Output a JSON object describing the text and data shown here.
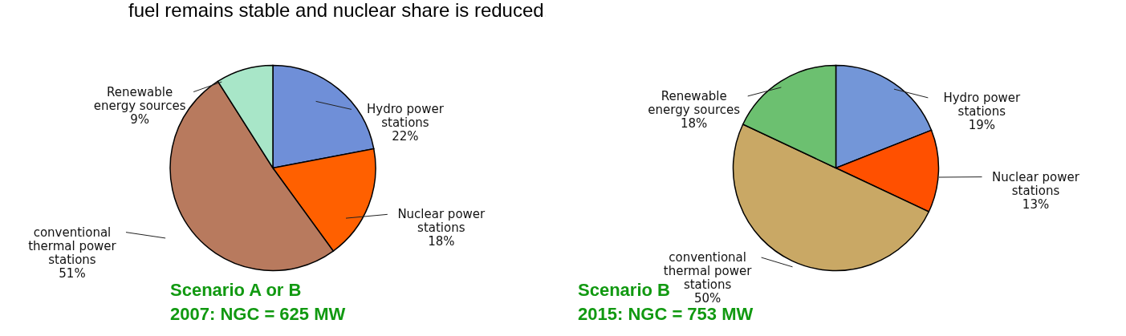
{
  "chart_data": [
    {
      "type": "pie",
      "title": "fuel remains stable and nuclear share is reduced.",
      "categories": [
        "Hydro power stations",
        "Nuclear power stations",
        "conventional thermal power stations",
        "Renewable energy sources"
      ],
      "values": [
        22,
        18,
        51,
        9
      ],
      "colors": [
        "#6f8fd8",
        "#ff6000",
        "#b87a5e",
        "#a8e6c8"
      ],
      "value_labels": [
        "22%",
        "18%",
        "51%",
        "9%"
      ],
      "annotations": [
        "Scenario A or B",
        "2007: NGC = 625 MW"
      ]
    },
    {
      "type": "pie",
      "categories": [
        "Hydro power stations",
        "Nuclear power stations",
        "conventional thermal power stations",
        "Renewable energy sources"
      ],
      "values": [
        19,
        13,
        50,
        18
      ],
      "colors": [
        "#7396d8",
        "#ff5000",
        "#c9a865",
        "#6cc070"
      ],
      "value_labels": [
        "19%",
        "13%",
        "50%",
        "18%"
      ],
      "annotations": [
        "Scenario B",
        "2015: NGC = 753 MW"
      ]
    }
  ]
}
